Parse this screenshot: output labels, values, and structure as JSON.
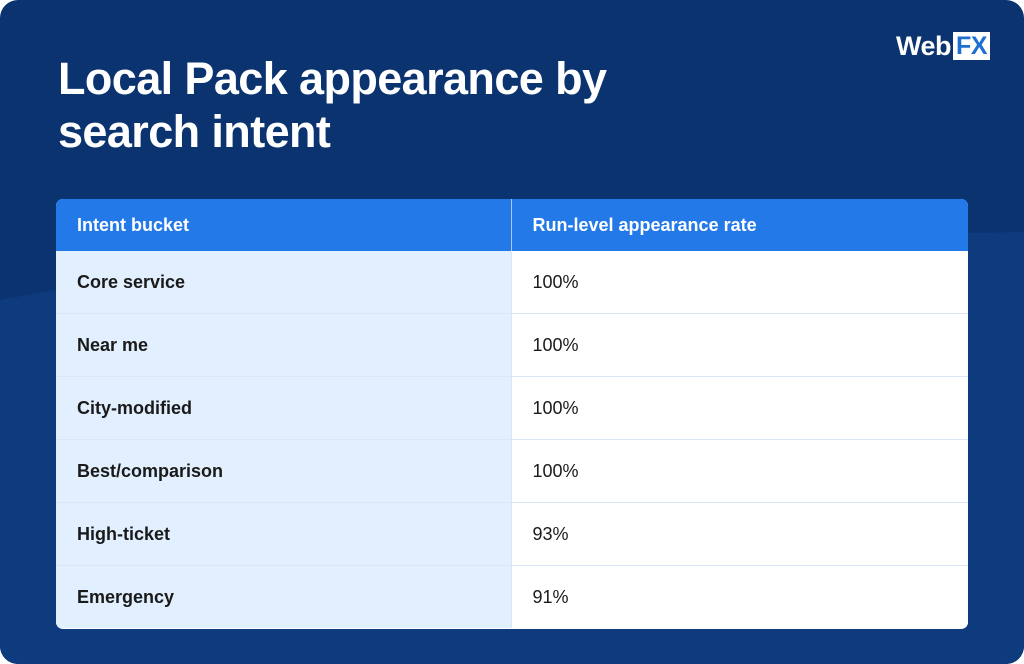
{
  "title": "Local Pack appearance by search intent",
  "logo": {
    "text_main": "Web",
    "text_box": "FX"
  },
  "table": {
    "columns": [
      "Intent bucket",
      "Run-level appearance rate"
    ],
    "rows": [
      {
        "intent": "Core service",
        "rate": "100%"
      },
      {
        "intent": "Near me",
        "rate": "100%"
      },
      {
        "intent": "City-modified",
        "rate": "100%"
      },
      {
        "intent": "Best/comparison",
        "rate": "100%"
      },
      {
        "intent": "High-ticket",
        "rate": "93%"
      },
      {
        "intent": "Emergency",
        "rate": "91%"
      }
    ]
  },
  "colors": {
    "background": "#0a3370",
    "header": "#2479e8",
    "first_column": "#e2effe"
  }
}
